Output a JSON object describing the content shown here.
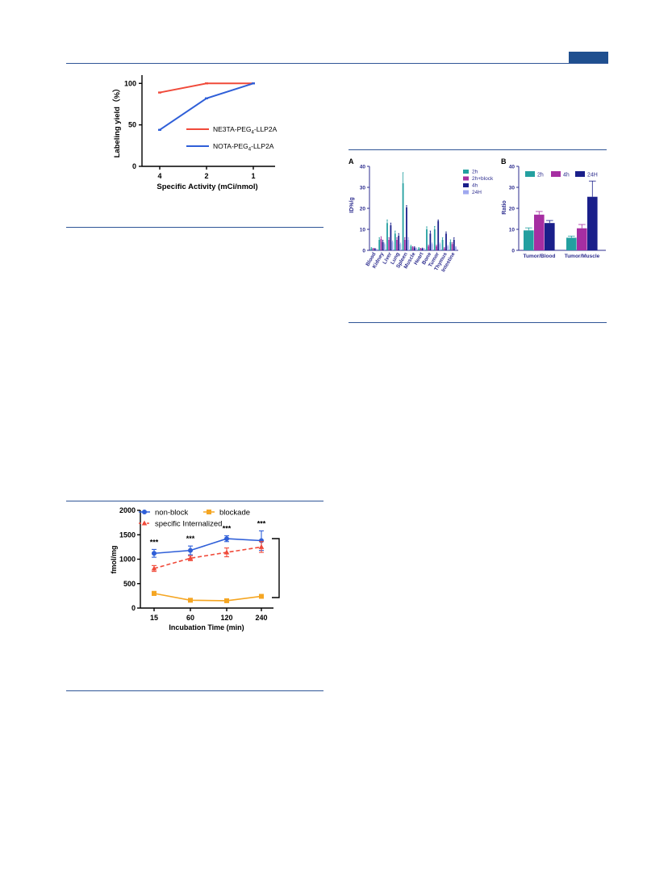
{
  "colors": {
    "rule": "#2f5597",
    "header_tab": "#1f4f8f"
  },
  "chart_data": [
    {
      "id": "labeling",
      "type": "line",
      "xlabel": "Specific Activity (mCi/nmol)",
      "ylabel": "Labeling yield（%）",
      "categories": [
        "4",
        "2",
        "1"
      ],
      "yticks": [
        "0",
        "50",
        "100"
      ],
      "ylim": [
        0,
        110
      ],
      "series": [
        {
          "name_main": "NE3TA-PEG",
          "name_sub": "4",
          "name_tail": "-LLP2A",
          "color": "#f04a3a",
          "values": [
            89,
            100,
            100
          ]
        },
        {
          "name_main": "NOTA-PEG",
          "name_sub": "4",
          "name_tail": "-LLP2A",
          "color": "#2f5fd8",
          "values": [
            44,
            82,
            100
          ]
        }
      ]
    },
    {
      "id": "biodist",
      "type": "bar",
      "panel_label": "A",
      "ylabel": "ID%/g",
      "categories": [
        "Blood",
        "Kidney",
        "Liver",
        "Lung",
        "Spleen",
        "Muscle",
        "Heart",
        "Bone",
        "Tumor",
        "Thymus",
        "Intestine"
      ],
      "yticks": [
        "0",
        "10",
        "20",
        "30",
        "40"
      ],
      "ylim": [
        0,
        40
      ],
      "series": [
        {
          "name": "2h",
          "color": "#23a0a0",
          "values": [
            1,
            5,
            13,
            8,
            32,
            2,
            1,
            10,
            10,
            5,
            4
          ],
          "err": [
            0.3,
            1,
            1.5,
            1.2,
            5,
            0.4,
            0.3,
            1.2,
            1.4,
            1,
            1
          ]
        },
        {
          "name": "2h+block",
          "color": "#a62ea2",
          "values": [
            0.8,
            5.5,
            5,
            5,
            5,
            1.5,
            0.8,
            2,
            2,
            1,
            3
          ],
          "err": [
            0.2,
            1,
            1,
            1,
            1,
            0.3,
            0.2,
            0.5,
            0.5,
            0.3,
            0.6
          ]
        },
        {
          "name": "4h",
          "color": "#1a1f8a",
          "values": [
            0.7,
            4,
            12,
            7,
            20.5,
            1.4,
            0.9,
            8,
            14,
            8,
            5
          ],
          "err": [
            0.2,
            0.8,
            1,
            1,
            0.8,
            0.3,
            0.2,
            1.2,
            0.5,
            0.8,
            1
          ]
        },
        {
          "name": "24H",
          "color": "#9fa8ef",
          "values": [
            0.5,
            3,
            4,
            3,
            5,
            1,
            0.7,
            3,
            3,
            2,
            1.5
          ],
          "err": [
            0.1,
            0.5,
            0.5,
            0.5,
            1,
            0.2,
            0.2,
            0.5,
            0.5,
            0.4,
            0.3
          ]
        }
      ]
    },
    {
      "id": "ratio",
      "type": "bar",
      "panel_label": "B",
      "ylabel": "Ratio",
      "categories": [
        "Tumor/Blood",
        "Tumor/Muscle"
      ],
      "yticks": [
        "0",
        "10",
        "20",
        "30",
        "40"
      ],
      "ylim": [
        0,
        40
      ],
      "series": [
        {
          "name": "2h",
          "color": "#23a0a0",
          "values": [
            9.5,
            6
          ],
          "err": [
            1.2,
            0.8
          ]
        },
        {
          "name": "4h",
          "color": "#a62ea2",
          "values": [
            17,
            10.5
          ],
          "err": [
            1.5,
            1.8
          ]
        },
        {
          "name": "24H",
          "color": "#1a1f8a",
          "values": [
            13,
            25.5
          ],
          "err": [
            1.2,
            7.5
          ]
        }
      ]
    },
    {
      "id": "internal",
      "type": "line",
      "xlabel": "Incubation Time (min)",
      "ylabel": "fmol/mg",
      "categories": [
        "15",
        "60",
        "120",
        "240"
      ],
      "yticks": [
        "0",
        "500",
        "1000",
        "1500",
        "2000"
      ],
      "ylim": [
        0,
        2000
      ],
      "significance": [
        "***",
        "***",
        "***",
        "***"
      ],
      "series": [
        {
          "name": "non-block",
          "color": "#2f5fd8",
          "marker": "circle",
          "dashed": false,
          "values": [
            1120,
            1180,
            1420,
            1380
          ],
          "err": [
            80,
            90,
            60,
            200
          ]
        },
        {
          "name": "blockade",
          "color": "#f5a623",
          "marker": "square",
          "dashed": false,
          "values": [
            300,
            160,
            150,
            240
          ],
          "err": [
            40,
            30,
            20,
            40
          ]
        },
        {
          "name": "specific Internalized",
          "color": "#f04a3a",
          "marker": "triangle",
          "dashed": true,
          "values": [
            810,
            1020,
            1140,
            1250
          ],
          "err": [
            60,
            50,
            90,
            110
          ]
        }
      ]
    }
  ]
}
